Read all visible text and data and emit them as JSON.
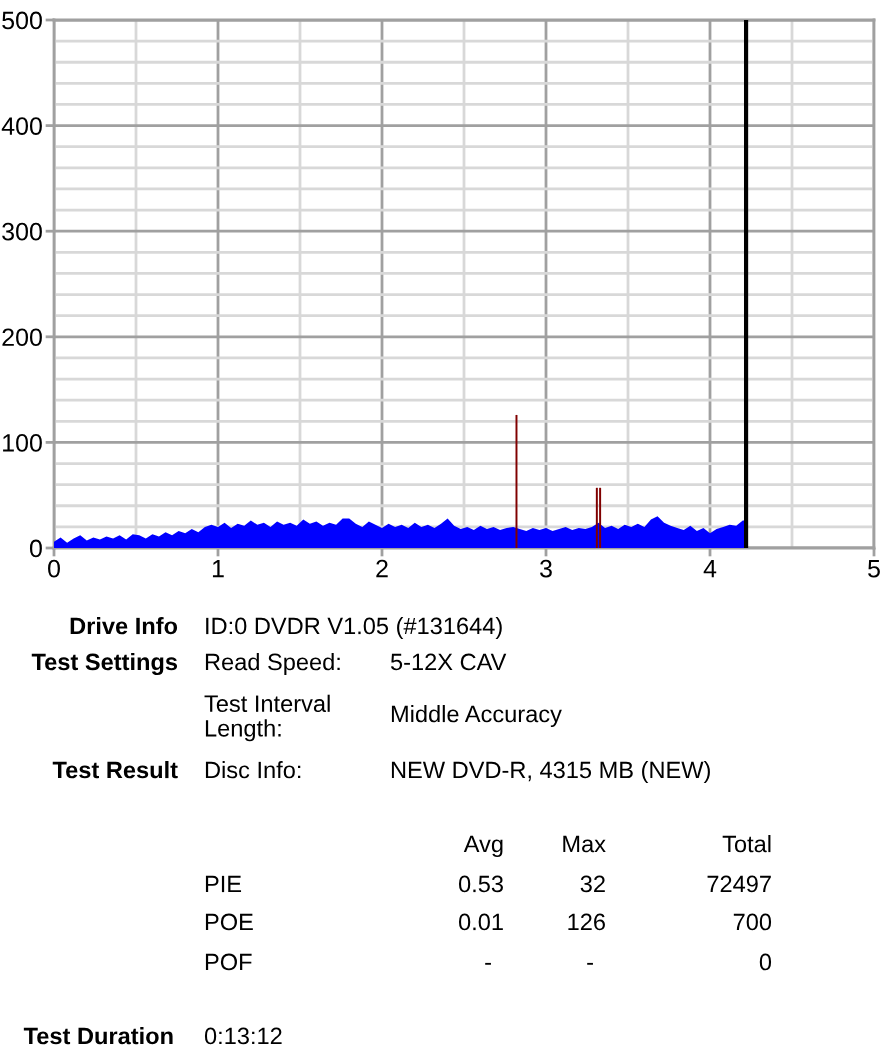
{
  "chart_data": {
    "type": "area",
    "xlim": [
      0,
      5
    ],
    "ylim": [
      0,
      500
    ],
    "xticks": [
      0,
      {
        "value": 0.5,
        "label": null
      },
      1,
      {
        "value": 1.5,
        "label": null
      },
      2,
      {
        "value": 2.5,
        "label": null
      },
      3,
      {
        "value": 3.5,
        "label": null
      },
      4,
      {
        "value": 4.5,
        "label": null
      },
      5
    ],
    "yticks": [
      0,
      {
        "value": 20,
        "label": null
      },
      {
        "value": 40,
        "label": null
      },
      {
        "value": 60,
        "label": null
      },
      {
        "value": 80,
        "label": null
      },
      100,
      {
        "value": 120,
        "label": null
      },
      {
        "value": 140,
        "label": null
      },
      {
        "value": 160,
        "label": null
      },
      {
        "value": 180,
        "label": null
      },
      200,
      {
        "value": 220,
        "label": null
      },
      {
        "value": 240,
        "label": null
      },
      {
        "value": 260,
        "label": null
      },
      {
        "value": 280,
        "label": null
      },
      300,
      {
        "value": 320,
        "label": null
      },
      {
        "value": 340,
        "label": null
      },
      {
        "value": 360,
        "label": null
      },
      {
        "value": 380,
        "label": null
      },
      400,
      {
        "value": 420,
        "label": null
      },
      {
        "value": 440,
        "label": null
      },
      {
        "value": 460,
        "label": null
      },
      {
        "value": 480,
        "label": null
      },
      500
    ],
    "grid": true,
    "series": [
      {
        "color": "#0000ff",
        "x": [
          0.0,
          0.04,
          0.08,
          0.12,
          0.16,
          0.2,
          0.24,
          0.28,
          0.32,
          0.36,
          0.4,
          0.44,
          0.48,
          0.52,
          0.56,
          0.6,
          0.64,
          0.68,
          0.72,
          0.76,
          0.8,
          0.84,
          0.88,
          0.92,
          0.96,
          1.0,
          1.04,
          1.08,
          1.12,
          1.16,
          1.2,
          1.24,
          1.28,
          1.32,
          1.36,
          1.4,
          1.44,
          1.48,
          1.52,
          1.56,
          1.6,
          1.64,
          1.68,
          1.72,
          1.76,
          1.8,
          1.84,
          1.88,
          1.92,
          1.96,
          2.0,
          2.04,
          2.08,
          2.12,
          2.16,
          2.2,
          2.24,
          2.28,
          2.32,
          2.36,
          2.4,
          2.44,
          2.48,
          2.52,
          2.56,
          2.6,
          2.64,
          2.68,
          2.72,
          2.76,
          2.8,
          2.84,
          2.88,
          2.92,
          2.96,
          3.0,
          3.04,
          3.08,
          3.12,
          3.16,
          3.2,
          3.24,
          3.28,
          3.32,
          3.36,
          3.4,
          3.44,
          3.48,
          3.52,
          3.56,
          3.6,
          3.64,
          3.68,
          3.72,
          3.76,
          3.8,
          3.84,
          3.88,
          3.92,
          3.96,
          4.0,
          4.04,
          4.08,
          4.12,
          4.16,
          4.2,
          4.22
        ],
        "values": [
          6,
          10,
          5,
          9,
          12,
          7,
          10,
          8,
          11,
          9,
          12,
          8,
          13,
          12,
          9,
          13,
          11,
          15,
          12,
          16,
          14,
          18,
          15,
          20,
          22,
          20,
          24,
          19,
          23,
          21,
          26,
          22,
          24,
          20,
          25,
          22,
          24,
          21,
          27,
          23,
          25,
          21,
          24,
          22,
          28,
          28,
          23,
          20,
          25,
          22,
          19,
          23,
          20,
          22,
          19,
          24,
          20,
          22,
          19,
          23,
          28,
          21,
          18,
          20,
          17,
          21,
          18,
          20,
          17,
          19,
          20,
          18,
          16,
          19,
          17,
          19,
          16,
          18,
          20,
          17,
          19,
          18,
          20,
          24,
          19,
          21,
          18,
          22,
          20,
          23,
          20,
          27,
          30,
          24,
          21,
          19,
          17,
          21,
          16,
          19,
          14,
          18,
          20,
          22,
          21,
          26,
          26
        ]
      },
      {
        "type": "bar",
        "color": "#800000",
        "x": [
          2.82,
          3.31,
          3.33
        ],
        "values": [
          126,
          57,
          57
        ]
      }
    ],
    "ref_lines": [
      {
        "axis": "x",
        "value": 4.22,
        "color": "#000000"
      }
    ],
    "annotations": [
      "Drive Info",
      "ID:0 DVDR V1.05 (#131644)",
      "Test Settings",
      "Read Speed:",
      "5-12X CAV",
      "Test Interval\nLength:",
      "Middle Accuracy",
      "Test Result",
      "Disc Info:",
      "NEW DVD-R, 4315 MB (NEW)",
      "Avg",
      "Max",
      "Total",
      "PIE",
      "0.53",
      "32",
      "72497",
      "POE",
      "0.01",
      "126",
      "700",
      "POF",
      "-",
      "-",
      "0",
      "Test Duration",
      "0:13:12"
    ]
  }
}
